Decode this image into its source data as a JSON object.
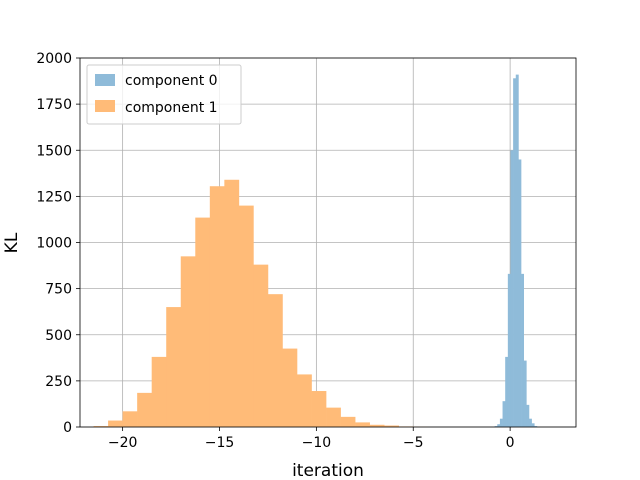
{
  "chart_data": {
    "type": "histogram",
    "xlabel": "iteration",
    "ylabel": "KL",
    "xlim": [
      -22.2,
      3.4
    ],
    "ylim": [
      0,
      2000
    ],
    "xticks": [
      -20,
      -15,
      -10,
      -5,
      0
    ],
    "yticks": [
      0,
      250,
      500,
      750,
      1000,
      1250,
      1500,
      1750,
      2000
    ],
    "xtick_labels": [
      "−20",
      "−15",
      "−10",
      "−5",
      "0"
    ],
    "ytick_labels": [
      "0",
      "250",
      "500",
      "750",
      "1000",
      "1250",
      "1500",
      "1750",
      "2000"
    ],
    "grid": true,
    "legend_position": "top-left",
    "series": [
      {
        "name": "component 1",
        "color": "#ffbb78",
        "bin_start": -21.5,
        "bin_width": 0.75,
        "counts": [
          5,
          35,
          85,
          185,
          380,
          650,
          925,
          1135,
          1305,
          1340,
          1200,
          880,
          720,
          425,
          285,
          195,
          105,
          55,
          25,
          12,
          8,
          3,
          1
        ]
      },
      {
        "name": "component 0",
        "color": "#8fbbd9",
        "bin_start": -0.8,
        "bin_width": 0.1364,
        "counts": [
          5,
          15,
          45,
          140,
          380,
          830,
          1500,
          1890,
          1910,
          1450,
          830,
          360,
          120,
          45,
          20,
          5
        ]
      }
    ],
    "legend": [
      {
        "label": "component 0",
        "color": "#8fbbd9"
      },
      {
        "label": "component 1",
        "color": "#ffbb78"
      }
    ]
  }
}
